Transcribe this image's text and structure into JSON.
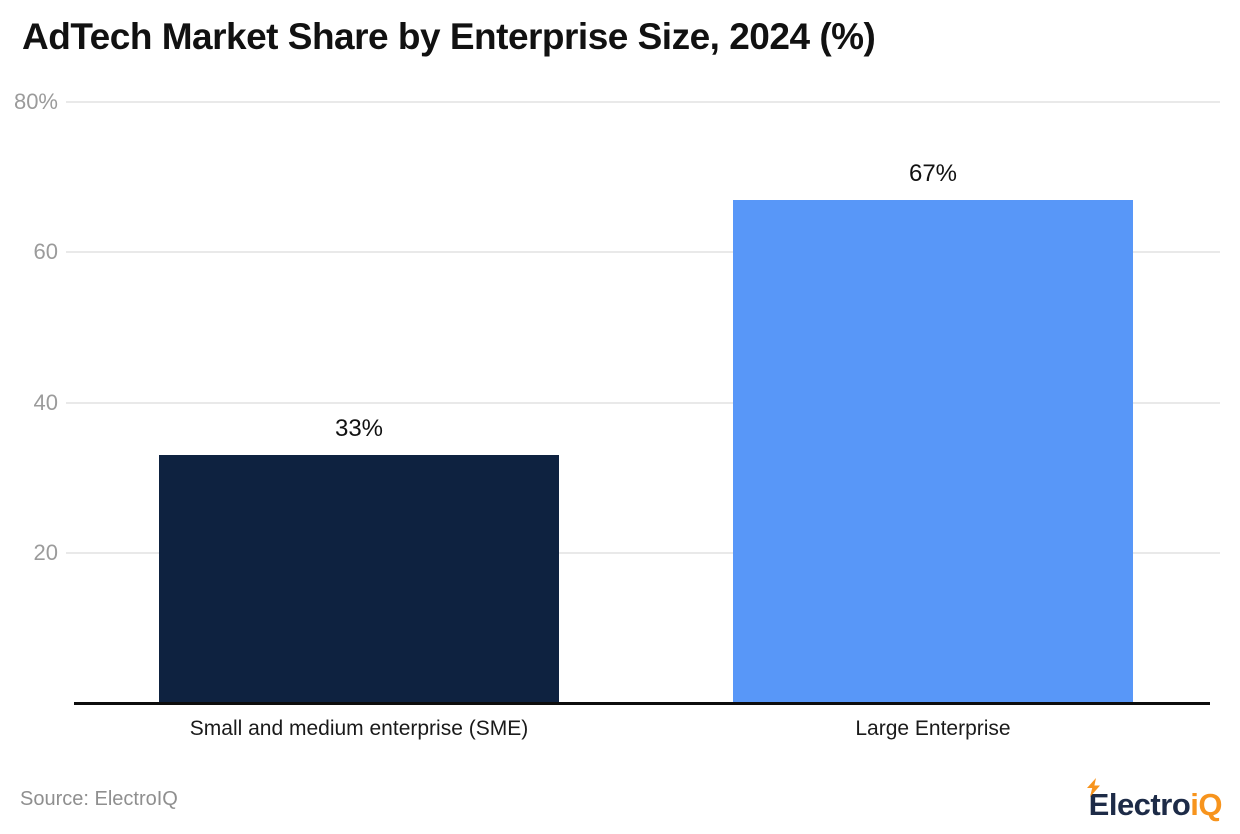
{
  "page": {
    "source_note": "Source: ElectroIQ",
    "logo": {
      "text_primary": "Electro",
      "text_accent": "iQ"
    }
  },
  "colors": {
    "title_text": "#111111",
    "tick_text": "#9b9b9b",
    "gridline": "#e9e9e9",
    "axis_line": "#0d0d0d",
    "bar_sme": "#0e2240",
    "bar_large_enterprise": "#5897f8",
    "logo_navy": "#1d2b47",
    "logo_orange": "#f7941d",
    "source_text": "#8f8f8f"
  },
  "chart_data": {
    "type": "bar",
    "title": "AdTech Market Share by Enterprise Size, 2024 (%)",
    "categories": [
      "Small and medium enterprise (SME)",
      "Large Enterprise"
    ],
    "values": [
      33,
      67
    ],
    "value_labels": [
      "33%",
      "67%"
    ],
    "bar_colors": [
      "#0e2240",
      "#5897f8"
    ],
    "xlabel": "",
    "ylabel": "",
    "ylim": [
      0,
      80
    ],
    "yticks": [
      20,
      40,
      60,
      80
    ],
    "ytick_labels": [
      "20",
      "40",
      "60",
      "80%"
    ],
    "grid": true,
    "legend": false,
    "source": "Source: ElectroIQ"
  }
}
